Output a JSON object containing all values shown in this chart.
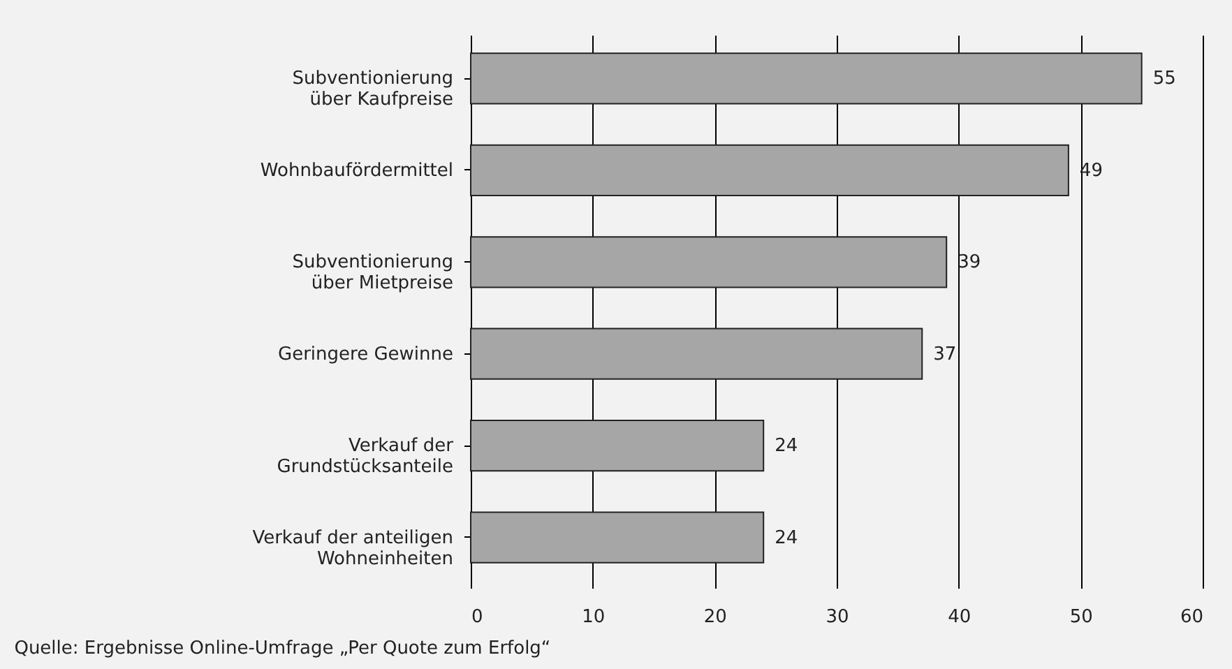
{
  "chart_data": {
    "type": "bar",
    "orientation": "horizontal",
    "categories": [
      "Subventionierung\nüber Kaufpreise",
      "Wohnbaufördermittel",
      "Subventionierung\nüber Mietpreise",
      "Geringere Gewinne",
      "Verkauf der\nGrundstücksanteile",
      "Verkauf der anteiligen\nWohneinheiten"
    ],
    "values": [
      55,
      49,
      39,
      37,
      24,
      24
    ],
    "color": "#a6a6a6",
    "xlim": [
      0,
      60
    ],
    "xticks": [
      0,
      10,
      20,
      30,
      40,
      50,
      60
    ],
    "grid": "x",
    "data_labels": true,
    "annotations": [
      "Quelle: Ergebnisse Online-Umfrage „Per Quote zum Erfolg“"
    ]
  }
}
